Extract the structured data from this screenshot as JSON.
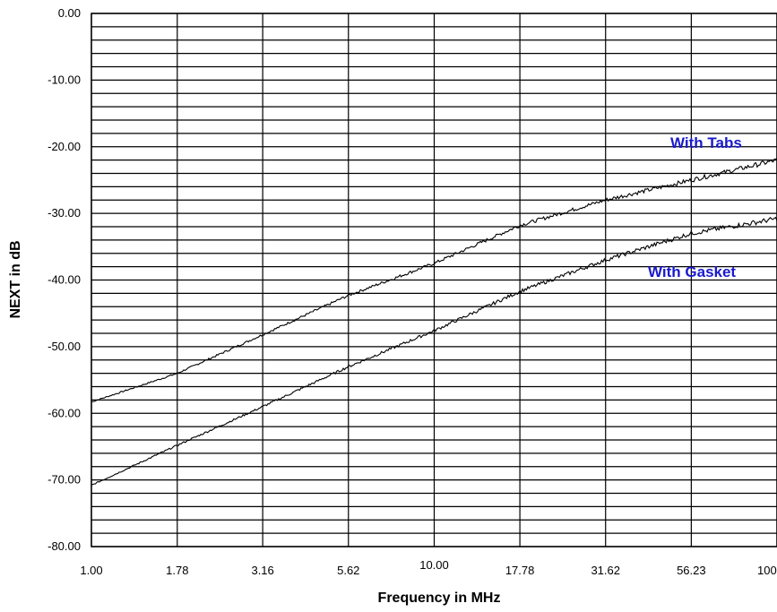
{
  "chart_data": {
    "type": "line",
    "title": "",
    "xlabel": "Frequency in MHz",
    "ylabel": "NEXT in dB",
    "x_scale": "log",
    "xlim": [
      1,
      100
    ],
    "ylim": [
      -80,
      0
    ],
    "x_ticks": [
      {
        "value": 1.0,
        "label": "1.00"
      },
      {
        "value": 1.78,
        "label": "1.78"
      },
      {
        "value": 3.16,
        "label": "3.16"
      },
      {
        "value": 5.62,
        "label": "5.62"
      },
      {
        "value": 10.0,
        "label": "10.00"
      },
      {
        "value": 17.78,
        "label": "17.78"
      },
      {
        "value": 31.62,
        "label": "31.62"
      },
      {
        "value": 56.23,
        "label": "56.23"
      },
      {
        "value": 100.0,
        "label": "100.00"
      }
    ],
    "y_ticks": [
      {
        "value": 0,
        "label": "0.00"
      },
      {
        "value": -10,
        "label": "-10.00"
      },
      {
        "value": -20,
        "label": "-20.00"
      },
      {
        "value": -30,
        "label": "-30.00"
      },
      {
        "value": -40,
        "label": "-40.00"
      },
      {
        "value": -50,
        "label": "-50.00"
      },
      {
        "value": -60,
        "label": "-60.00"
      },
      {
        "value": -70,
        "label": "-70.00"
      },
      {
        "value": -80,
        "label": "-80.00"
      }
    ],
    "y_minor_step": 2,
    "grid": true,
    "label_color": "#1a1acc",
    "line_color": "#000000",
    "series": [
      {
        "name": "With Tabs",
        "x": [
          1.0,
          1.78,
          3.16,
          5.62,
          10.0,
          17.78,
          31.62,
          56.23,
          100.0
        ],
        "y": [
          -58.3,
          -54.0,
          -48.2,
          -42.3,
          -37.5,
          -31.8,
          -28.0,
          -25.0,
          -22.0
        ]
      },
      {
        "name": "With Gasket",
        "x": [
          1.0,
          1.78,
          3.16,
          5.62,
          10.0,
          17.78,
          31.62,
          56.23,
          100.0
        ],
        "y": [
          -70.8,
          -64.8,
          -59.0,
          -53.0,
          -47.6,
          -41.7,
          -37.0,
          -33.0,
          -30.8
        ]
      }
    ]
  }
}
